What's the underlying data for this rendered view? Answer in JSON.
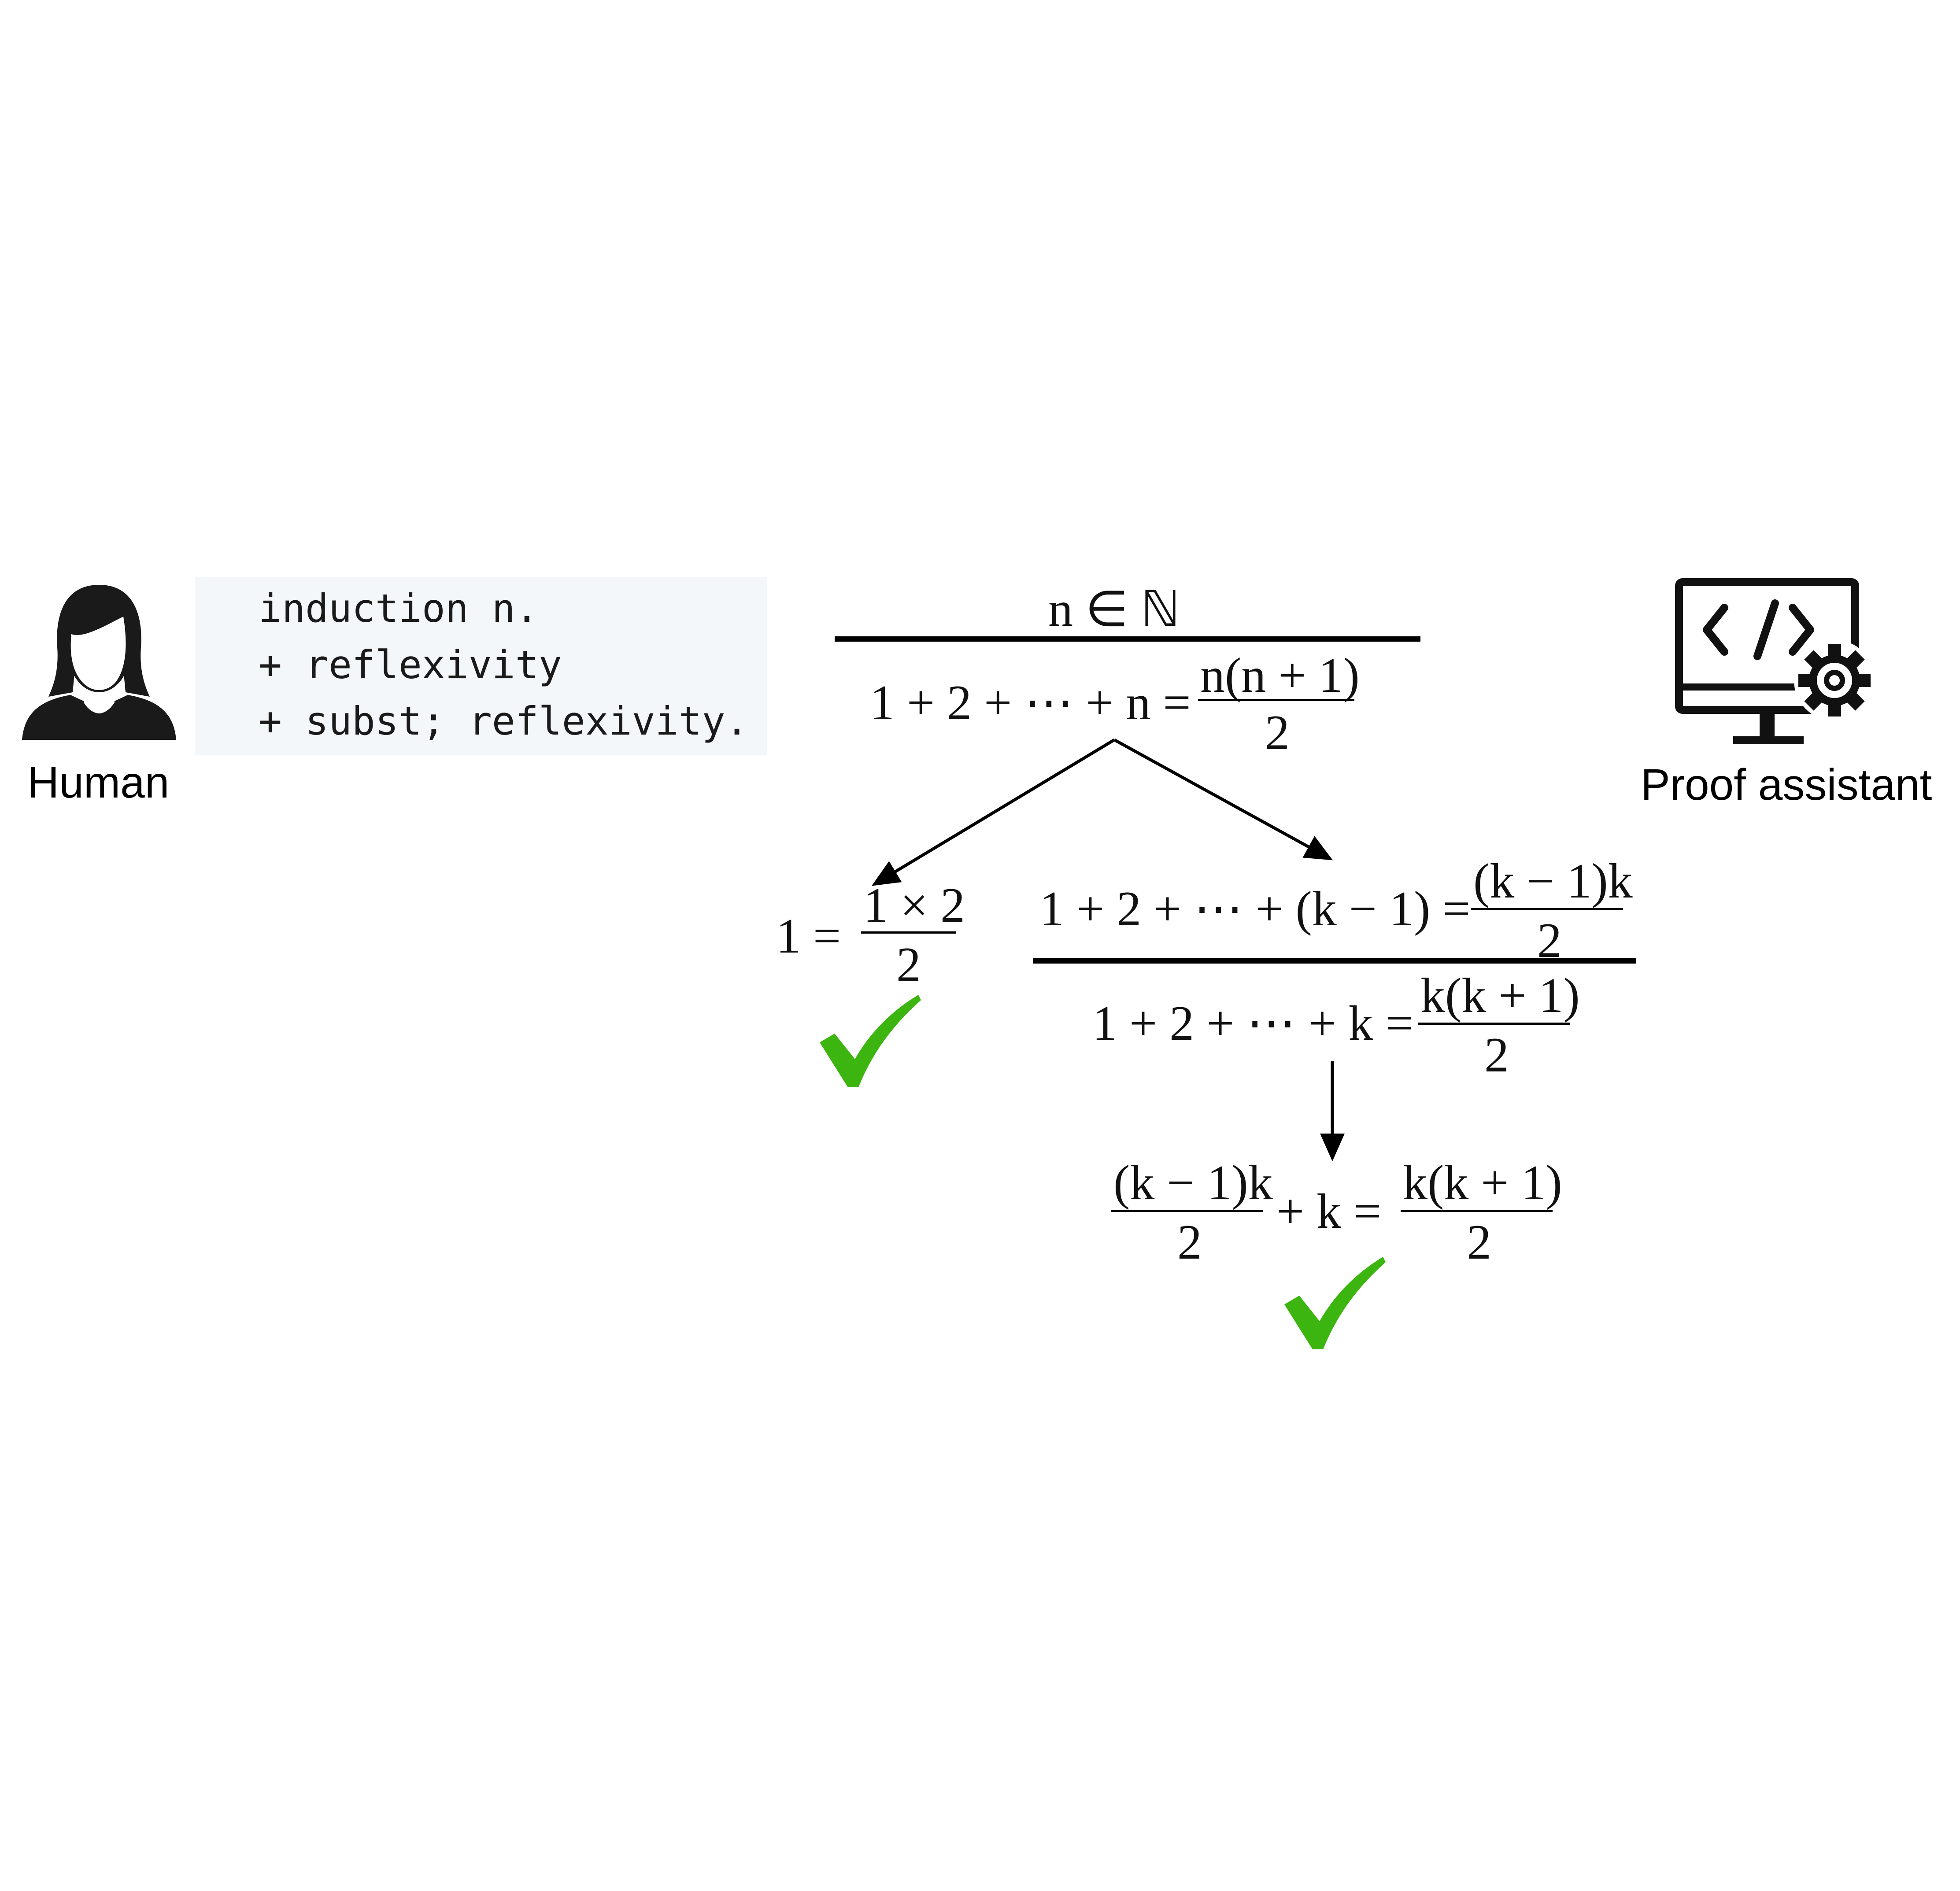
{
  "human": {
    "label": "Human",
    "avatar_icon": "woman-avatar-icon"
  },
  "code": {
    "lines": [
      "induction n.",
      "+ reflexivity",
      "+ subst; reflexivity."
    ]
  },
  "proof_assistant": {
    "label": "Proof assistant",
    "icon": "monitor-code-gear-icon"
  },
  "proof_tree": {
    "root": {
      "premise": "n ∈ ℕ",
      "conclusion_lhs": "1 + 2 + ⋯ + n =",
      "conclusion_num": "n(n + 1)",
      "conclusion_den": "2"
    },
    "base_case": {
      "lhs": "1 =",
      "num": "1 × 2",
      "den": "2"
    },
    "inductive_step": {
      "hyp_lhs": "1 + 2 + ⋯ + (k − 1) =",
      "hyp_num": "(k − 1)k",
      "hyp_den": "2",
      "goal_lhs": "1 + 2 + ⋯ + k =",
      "goal_num": "k(k + 1)",
      "goal_den": "2"
    },
    "reduced": {
      "left_num": "(k − 1)k",
      "left_den": "2",
      "middle": "+ k =",
      "right_num": "k(k + 1)",
      "right_den": "2"
    }
  },
  "colors": {
    "check": "#3db510",
    "code_bg": "#f4f7fa"
  }
}
